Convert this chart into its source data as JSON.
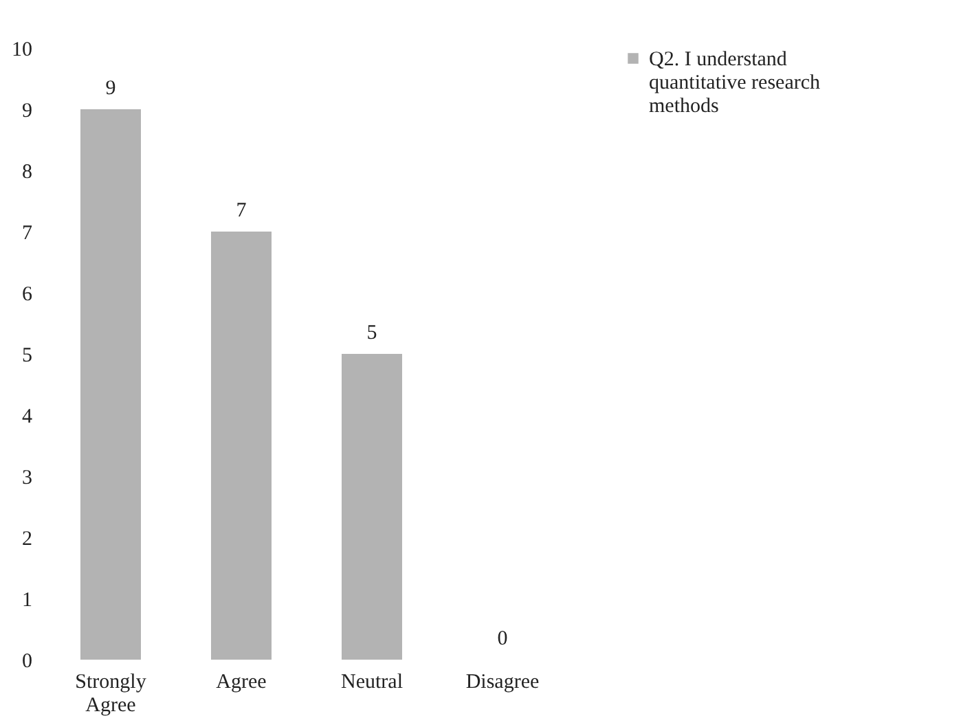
{
  "chart_data": {
    "type": "bar",
    "categories": [
      "Strongly Agree",
      "Agree",
      "Neutral",
      "Disagree"
    ],
    "series": [
      {
        "name": "Q2. I understand quantitative research methods",
        "color": "#b3b3b3",
        "values": [
          9,
          7,
          5,
          0
        ]
      }
    ],
    "ylim": [
      0,
      10
    ],
    "yticks": [
      0,
      1,
      2,
      3,
      4,
      5,
      6,
      7,
      8,
      9,
      10
    ],
    "data_labels": true,
    "legend": "right",
    "grid": false
  }
}
